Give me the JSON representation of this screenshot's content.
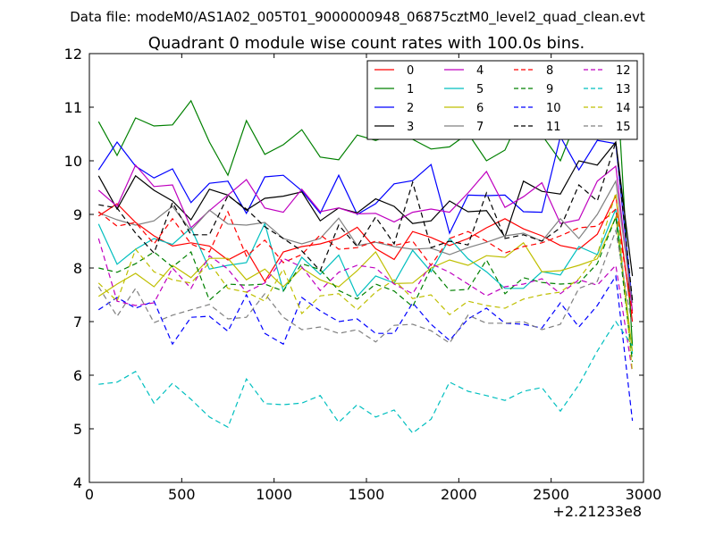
{
  "suptitle": "Data file: modeM0/AS1A02_005T01_9000000948_06875cztM0_level2_quad_clean.evt",
  "chart_data": {
    "type": "line",
    "title": "Quadrant 0 module wise count rates with 100.0s bins.",
    "xlabel": "",
    "ylabel": "",
    "x_offset_label": "+2.21233e8",
    "xlim": [
      0,
      3000
    ],
    "ylim": [
      4,
      12
    ],
    "xticks": [
      "0",
      "500",
      "1000",
      "1500",
      "2000",
      "2500",
      "3000"
    ],
    "yticks": [
      "4",
      "5",
      "6",
      "7",
      "8",
      "9",
      "10",
      "11",
      "12"
    ],
    "grid": false,
    "legend_position": "top-right",
    "x": [
      50,
      150,
      250,
      350,
      450,
      550,
      650,
      750,
      850,
      950,
      1050,
      1150,
      1250,
      1350,
      1450,
      1550,
      1650,
      1750,
      1850,
      1950,
      2050,
      2150,
      2250,
      2350,
      2450,
      2550,
      2650,
      2750,
      2850,
      2940
    ],
    "series": [
      {
        "name": "0",
        "color": "#ff0000",
        "dash": "solid",
        "values": [
          8.97,
          9.2,
          8.85,
          8.6,
          8.41,
          8.47,
          8.41,
          8.15,
          8.33,
          7.75,
          8.3,
          8.4,
          8.45,
          8.55,
          8.76,
          8.36,
          8.16,
          8.68,
          8.57,
          8.42,
          8.55,
          8.75,
          8.92,
          8.73,
          8.6,
          8.42,
          8.35,
          8.63,
          9.35,
          7.0
        ]
      },
      {
        "name": "1",
        "color": "#008000",
        "dash": "solid",
        "values": [
          10.73,
          10.1,
          10.8,
          10.65,
          10.67,
          11.12,
          10.35,
          9.73,
          10.75,
          10.12,
          10.3,
          10.58,
          10.07,
          10.02,
          10.48,
          10.38,
          10.5,
          10.4,
          10.22,
          10.26,
          10.51,
          10.0,
          10.2,
          10.95,
          10.48,
          10.0,
          10.88,
          10.7,
          11.85,
          6.55
        ]
      },
      {
        "name": "2",
        "color": "#0000ff",
        "dash": "solid",
        "values": [
          9.83,
          10.35,
          9.9,
          9.68,
          9.85,
          9.22,
          9.58,
          9.62,
          9.02,
          9.7,
          9.73,
          9.44,
          9.02,
          9.73,
          9.0,
          9.2,
          9.57,
          9.63,
          9.93,
          8.65,
          9.36,
          9.35,
          9.36,
          9.05,
          9.04,
          10.45,
          9.83,
          10.38,
          10.32,
          7.35
        ]
      },
      {
        "name": "3",
        "color": "#000000",
        "dash": "solid",
        "values": [
          9.72,
          9.1,
          9.72,
          9.45,
          9.25,
          8.9,
          9.47,
          9.36,
          9.08,
          9.3,
          9.34,
          9.42,
          8.88,
          9.12,
          9.03,
          9.29,
          9.15,
          8.83,
          8.88,
          9.25,
          9.05,
          9.07,
          8.58,
          9.62,
          9.43,
          9.38,
          10.0,
          9.92,
          10.35,
          7.85
        ]
      },
      {
        "name": "4",
        "color": "#bf00bf",
        "dash": "solid",
        "values": [
          9.45,
          9.15,
          9.92,
          9.52,
          9.55,
          8.75,
          9.07,
          9.36,
          9.65,
          9.12,
          9.04,
          9.47,
          9.05,
          9.12,
          9.01,
          9.02,
          8.86,
          9.04,
          9.1,
          9.04,
          9.4,
          9.8,
          9.13,
          9.33,
          9.59,
          8.83,
          8.9,
          9.62,
          9.9,
          7.2
        ]
      },
      {
        "name": "5",
        "color": "#00bfbf",
        "dash": "solid",
        "values": [
          8.82,
          8.07,
          8.35,
          8.55,
          8.44,
          8.75,
          7.98,
          8.05,
          8.1,
          8.83,
          7.57,
          8.2,
          7.88,
          8.24,
          7.47,
          7.85,
          7.72,
          8.33,
          7.93,
          8.55,
          8.17,
          7.93,
          7.62,
          7.62,
          7.93,
          7.87,
          8.4,
          8.25,
          9.1,
          6.4
        ]
      },
      {
        "name": "6",
        "color": "#bfbf00",
        "dash": "solid",
        "values": [
          7.47,
          7.7,
          7.9,
          7.65,
          8.05,
          7.82,
          8.18,
          8.18,
          7.78,
          7.98,
          7.65,
          8.0,
          7.78,
          7.65,
          7.95,
          8.3,
          7.71,
          7.72,
          8.0,
          8.15,
          8.05,
          8.23,
          8.2,
          8.47,
          7.93,
          7.95,
          8.05,
          8.17,
          8.95,
          6.45
        ]
      },
      {
        "name": "7",
        "color": "#808080",
        "dash": "solid",
        "values": [
          9.03,
          8.9,
          8.8,
          8.88,
          9.15,
          8.7,
          9.08,
          8.82,
          8.8,
          8.85,
          8.55,
          8.45,
          8.55,
          8.93,
          8.42,
          8.48,
          8.4,
          8.35,
          8.37,
          8.25,
          8.38,
          8.48,
          8.6,
          8.65,
          8.5,
          8.92,
          8.55,
          9.0,
          9.62,
          7.35
        ]
      },
      {
        "name": "8",
        "color": "#ff0000",
        "dash": "dashed",
        "values": [
          9.05,
          8.78,
          8.85,
          8.45,
          8.92,
          8.45,
          8.3,
          9.05,
          8.22,
          8.52,
          8.1,
          8.25,
          8.62,
          8.35,
          8.38,
          8.5,
          8.42,
          8.5,
          8.05,
          8.55,
          8.68,
          8.5,
          8.28,
          8.4,
          8.47,
          8.6,
          8.75,
          8.78,
          9.1,
          7.15
        ]
      },
      {
        "name": "9",
        "color": "#008000",
        "dash": "dashed",
        "values": [
          8.0,
          7.92,
          8.08,
          8.3,
          8.02,
          8.3,
          7.4,
          7.7,
          7.68,
          7.7,
          7.57,
          8.08,
          7.97,
          7.58,
          7.42,
          7.7,
          7.57,
          7.28,
          8.0,
          7.58,
          7.6,
          8.15,
          7.52,
          7.82,
          7.73,
          7.7,
          7.72,
          8.08,
          8.95,
          6.25
        ]
      },
      {
        "name": "10",
        "color": "#0000ff",
        "dash": "dashed",
        "values": [
          7.22,
          7.45,
          7.25,
          7.38,
          6.58,
          7.08,
          7.1,
          6.82,
          7.5,
          6.78,
          6.58,
          7.45,
          7.2,
          7.0,
          7.05,
          6.78,
          6.78,
          7.35,
          6.95,
          6.65,
          7.05,
          7.25,
          6.97,
          6.95,
          6.88,
          7.35,
          6.9,
          7.3,
          7.85,
          5.15
        ]
      },
      {
        "name": "11",
        "color": "#000000",
        "dash": "dashed",
        "values": [
          9.18,
          9.12,
          8.65,
          8.28,
          9.22,
          8.62,
          8.62,
          9.35,
          9.1,
          8.77,
          8.55,
          8.32,
          7.95,
          8.8,
          8.4,
          8.95,
          8.45,
          9.6,
          8.38,
          8.5,
          8.43,
          9.4,
          8.55,
          8.62,
          8.5,
          8.75,
          9.55,
          9.25,
          10.35,
          7.4
        ]
      },
      {
        "name": "12",
        "color": "#bf00bf",
        "dash": "dashed",
        "values": [
          8.55,
          7.38,
          7.3,
          7.35,
          8.0,
          7.62,
          8.23,
          7.98,
          7.55,
          7.72,
          8.18,
          8.02,
          7.58,
          7.92,
          8.05,
          8.0,
          7.7,
          7.52,
          8.08,
          7.92,
          7.7,
          7.48,
          7.65,
          7.7,
          7.8,
          7.52,
          7.78,
          7.68,
          8.05,
          6.05
        ]
      },
      {
        "name": "13",
        "color": "#00bfbf",
        "dash": "dashed",
        "values": [
          5.83,
          5.87,
          6.07,
          5.48,
          5.85,
          5.55,
          5.22,
          5.03,
          5.93,
          5.47,
          5.45,
          5.48,
          5.62,
          5.12,
          5.45,
          5.22,
          5.35,
          4.92,
          5.18,
          5.87,
          5.7,
          5.62,
          5.53,
          5.7,
          5.77,
          5.33,
          5.82,
          6.45,
          7.0,
          6.55
        ]
      },
      {
        "name": "14",
        "color": "#bfbf00",
        "dash": "dashed",
        "values": [
          7.72,
          7.38,
          8.35,
          7.93,
          7.78,
          7.72,
          8.1,
          7.62,
          7.55,
          7.38,
          7.98,
          7.15,
          7.48,
          7.52,
          7.22,
          7.55,
          7.78,
          7.43,
          7.5,
          7.13,
          7.38,
          7.3,
          7.25,
          7.42,
          7.5,
          7.55,
          7.8,
          8.25,
          9.4,
          6.05
        ]
      },
      {
        "name": "15",
        "color": "#808080",
        "dash": "dashed",
        "values": [
          7.65,
          7.1,
          7.62,
          6.98,
          7.12,
          7.22,
          7.32,
          7.05,
          7.08,
          7.52,
          7.08,
          6.85,
          6.9,
          6.78,
          6.85,
          6.62,
          6.93,
          6.95,
          6.83,
          6.6,
          7.12,
          6.97,
          6.97,
          7.0,
          6.85,
          6.95,
          7.62,
          7.75,
          8.7,
          6.9
        ]
      }
    ]
  }
}
